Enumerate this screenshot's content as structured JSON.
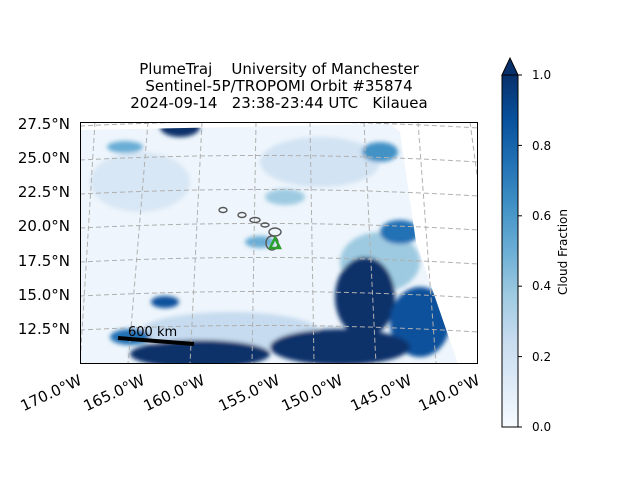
{
  "title": {
    "line1": "PlumeTraj    University of Manchester",
    "line2": "Sentinel-5P/TROPOMI Orbit #35874",
    "line3": "2024-09-14   23:38-23:44 UTC   Kilauea"
  },
  "map": {
    "lat_ticks": [
      "27.5°N",
      "25.0°N",
      "22.5°N",
      "20.0°N",
      "17.5°N",
      "15.0°N",
      "12.5°N"
    ],
    "lon_ticks": [
      "170.0°W",
      "165.0°W",
      "160.0°W",
      "155.0°W",
      "150.0°W",
      "145.0°W",
      "140.0°W"
    ],
    "volcano": "Kilauea",
    "volcano_marker_color": "#2ca02c",
    "scale_bar_label": "600 km",
    "gridlines": true
  },
  "colorbar": {
    "label": "Cloud Fraction",
    "ticks": [
      "0.0",
      "0.2",
      "0.4",
      "0.6",
      "0.8",
      "1.0"
    ],
    "range": [
      0.0,
      1.0
    ],
    "colormap": "Blues",
    "extend": "max",
    "color_low": "#f7fbff",
    "color_high": "#08306b"
  }
}
